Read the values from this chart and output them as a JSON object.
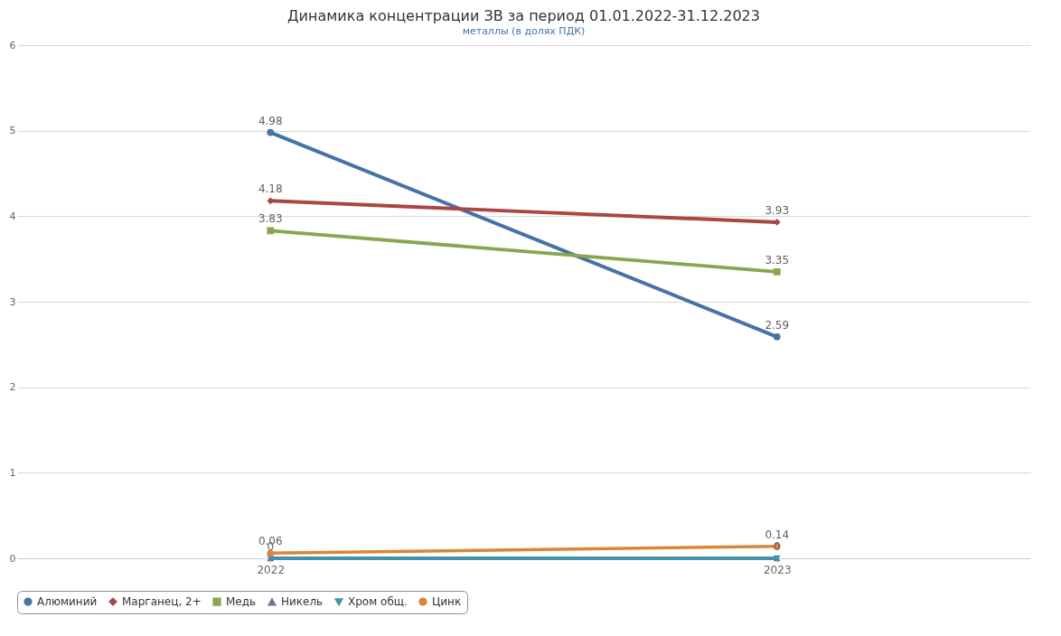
{
  "chart_data": {
    "type": "line",
    "title": "Динамика концентрации ЗВ за период 01.01.2022-31.12.2023",
    "subtitle": "металлы (в долях ПДК)",
    "categories": [
      "2022",
      "2023"
    ],
    "series": [
      {
        "name": "Алюминий",
        "color": "#4572a7",
        "marker": "circle",
        "values": [
          4.98,
          2.59
        ],
        "value_labels": [
          "4.98",
          "2.59"
        ]
      },
      {
        "name": "Марганец, 2+",
        "color": "#aa4643",
        "marker": "diamond",
        "values": [
          4.18,
          3.93
        ],
        "value_labels": [
          "4.18",
          "3.93"
        ]
      },
      {
        "name": "Медь",
        "color": "#89a54e",
        "marker": "square",
        "values": [
          3.83,
          3.35
        ],
        "value_labels": [
          "3.83",
          "3.35"
        ]
      },
      {
        "name": "Никель",
        "color": "#80699b",
        "marker": "triangle",
        "values": [
          0,
          0
        ],
        "value_labels": [
          "0",
          "0"
        ]
      },
      {
        "name": "Хром общ.",
        "color": "#3d96ae",
        "marker": "triangle-down",
        "values": [
          0,
          0
        ],
        "value_labels": [
          null,
          null
        ]
      },
      {
        "name": "Цинк",
        "color": "#db843d",
        "marker": "circle",
        "values": [
          0.06,
          0.14
        ],
        "value_labels": [
          "0.06",
          "0.14"
        ]
      }
    ],
    "ylim": [
      0,
      6
    ],
    "yticks": [
      0,
      1,
      2,
      3,
      4,
      5,
      6
    ],
    "grid": "y",
    "legend": "bottom"
  }
}
